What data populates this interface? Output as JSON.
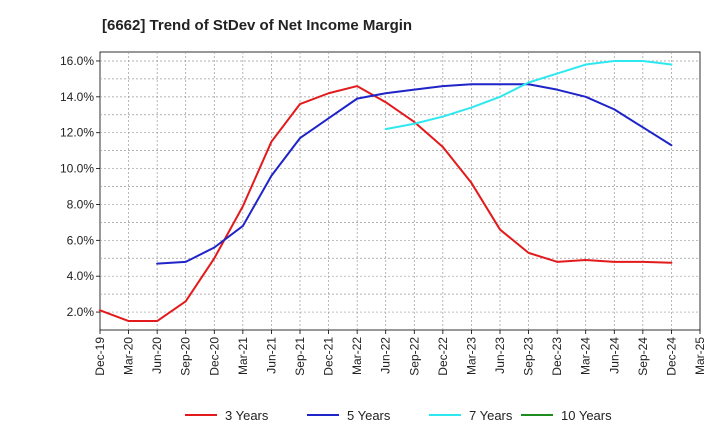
{
  "chart_data": {
    "type": "line",
    "title": "[6662]  Trend of StDev of Net Income Margin",
    "xlabel": "",
    "ylabel": "",
    "ylim": [
      1.0,
      16.5
    ],
    "yticks": [
      "2.0%",
      "4.0%",
      "6.0%",
      "8.0%",
      "10.0%",
      "12.0%",
      "14.0%",
      "16.0%"
    ],
    "ytick_values": [
      2,
      4,
      6,
      8,
      10,
      12,
      14,
      16
    ],
    "categories": [
      "Dec-19",
      "Mar-20",
      "Jun-20",
      "Sep-20",
      "Dec-20",
      "Mar-21",
      "Jun-21",
      "Sep-21",
      "Dec-21",
      "Mar-22",
      "Jun-22",
      "Sep-22",
      "Dec-22",
      "Mar-23",
      "Jun-23",
      "Sep-23",
      "Dec-23",
      "Mar-24",
      "Jun-24",
      "Sep-24",
      "Dec-24",
      "Mar-25"
    ],
    "grid": true,
    "legend_position": "bottom",
    "series": [
      {
        "name": "3 Years",
        "color": "#e31a1c",
        "values": [
          2.1,
          1.5,
          1.5,
          2.6,
          5.0,
          7.9,
          11.5,
          13.6,
          14.2,
          14.6,
          13.7,
          12.6,
          11.2,
          9.2,
          6.6,
          5.3,
          4.8,
          4.9,
          4.8,
          4.8,
          4.75,
          null
        ]
      },
      {
        "name": "5 Years",
        "color": "#1f24c8",
        "values": [
          null,
          null,
          4.7,
          4.8,
          5.6,
          6.8,
          9.6,
          11.7,
          12.8,
          13.9,
          14.2,
          14.4,
          14.6,
          14.7,
          14.7,
          14.7,
          14.4,
          14.0,
          13.3,
          12.3,
          11.3,
          null
        ]
      },
      {
        "name": "7 Years",
        "color": "#2ee8f0",
        "values": [
          null,
          null,
          null,
          null,
          null,
          null,
          null,
          null,
          null,
          null,
          12.2,
          12.5,
          12.9,
          13.4,
          14.0,
          14.8,
          15.3,
          15.8,
          16.0,
          16.0,
          15.8,
          null
        ]
      },
      {
        "name": "10 Years",
        "color": "#1f8c1f",
        "values": [
          null,
          null,
          null,
          null,
          null,
          null,
          null,
          null,
          null,
          null,
          null,
          null,
          null,
          null,
          null,
          null,
          null,
          null,
          null,
          null,
          null,
          null
        ]
      }
    ]
  }
}
